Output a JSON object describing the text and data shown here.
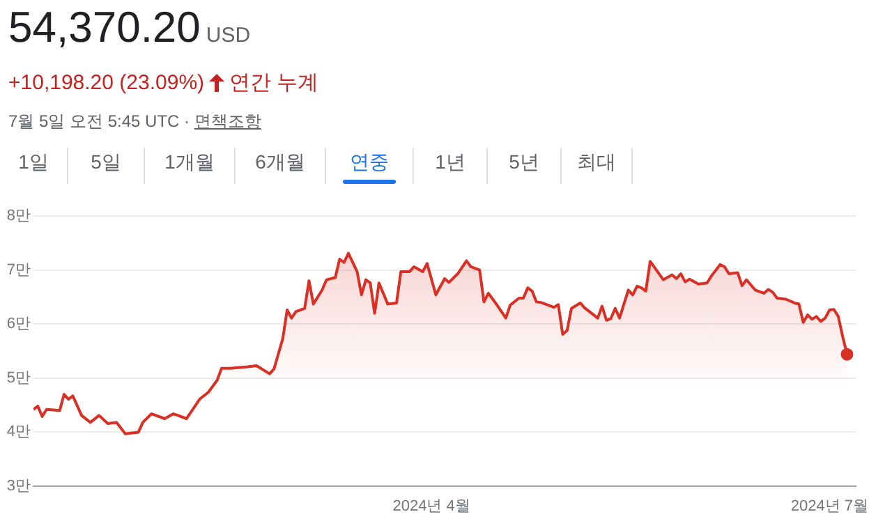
{
  "chart_data": {
    "type": "area",
    "title": "54,370.20",
    "subtitle": "USD",
    "annotations": [
      "+10,198.20 (23.09%)",
      "연간 누계",
      "7월 5일 오전 5:45 UTC · ",
      "면책조항",
      "1일",
      "5일",
      "1개월",
      "6개월",
      "연중",
      "1년",
      "5년",
      "최대"
    ],
    "x": [
      "2024-01-01",
      "2024-01-02",
      "2024-01-03",
      "2024-01-04",
      "2024-01-07",
      "2024-01-08",
      "2024-01-09",
      "2024-01-10",
      "2024-01-12",
      "2024-01-14",
      "2024-01-16",
      "2024-01-18",
      "2024-01-20",
      "2024-01-22",
      "2024-01-25",
      "2024-01-26",
      "2024-01-28",
      "2024-01-31",
      "2024-02-02",
      "2024-02-05",
      "2024-02-08",
      "2024-02-10",
      "2024-02-12",
      "2024-02-13",
      "2024-02-15",
      "2024-02-19",
      "2024-02-21",
      "2024-02-24",
      "2024-02-25",
      "2024-02-27",
      "2024-02-28",
      "2024-02-29",
      "2024-03-01",
      "2024-03-03",
      "2024-03-04",
      "2024-03-05",
      "2024-03-07",
      "2024-03-08",
      "2024-03-10",
      "2024-03-11",
      "2024-03-12",
      "2024-03-13",
      "2024-03-15",
      "2024-03-16",
      "2024-03-17",
      "2024-03-18",
      "2024-03-19",
      "2024-03-20",
      "2024-03-22",
      "2024-03-24",
      "2024-03-25",
      "2024-03-27",
      "2024-03-28",
      "2024-03-30",
      "2024-03-31",
      "2024-04-02",
      "2024-04-04",
      "2024-04-05",
      "2024-04-07",
      "2024-04-09",
      "2024-04-10",
      "2024-04-12",
      "2024-04-13",
      "2024-04-14",
      "2024-04-16",
      "2024-04-18",
      "2024-04-19",
      "2024-04-21",
      "2024-04-22",
      "2024-04-23",
      "2024-04-24",
      "2024-04-25",
      "2024-04-26",
      "2024-04-29",
      "2024-04-30",
      "2024-05-01",
      "2024-05-02",
      "2024-05-03",
      "2024-05-05",
      "2024-05-06",
      "2024-05-09",
      "2024-05-10",
      "2024-05-11",
      "2024-05-12",
      "2024-05-13",
      "2024-05-14",
      "2024-05-16",
      "2024-05-17",
      "2024-05-18",
      "2024-05-19",
      "2024-05-20",
      "2024-05-21",
      "2024-05-24",
      "2024-05-26",
      "2024-05-27",
      "2024-05-28",
      "2024-05-29",
      "2024-05-30",
      "2024-06-01",
      "2024-06-03",
      "2024-06-04",
      "2024-06-06",
      "2024-06-07",
      "2024-06-08",
      "2024-06-10",
      "2024-06-11",
      "2024-06-12",
      "2024-06-14",
      "2024-06-16",
      "2024-06-17",
      "2024-06-18",
      "2024-06-19",
      "2024-06-21",
      "2024-06-23",
      "2024-06-24",
      "2024-06-25",
      "2024-06-26",
      "2024-06-27",
      "2024-06-28",
      "2024-06-29",
      "2024-06-30",
      "2024-07-01",
      "2024-07-02",
      "2024-07-03",
      "2024-07-04",
      "2024-07-05"
    ],
    "values": [
      4.42,
      4.48,
      4.29,
      4.42,
      4.4,
      4.7,
      4.61,
      4.67,
      4.31,
      4.18,
      4.31,
      4.16,
      4.18,
      3.97,
      4.0,
      4.18,
      4.34,
      4.25,
      4.34,
      4.25,
      4.61,
      4.74,
      4.96,
      5.18,
      5.18,
      5.21,
      5.23,
      5.08,
      5.17,
      5.73,
      6.26,
      6.11,
      6.23,
      6.29,
      6.8,
      6.37,
      6.63,
      6.82,
      6.86,
      7.2,
      7.14,
      7.31,
      6.97,
      6.54,
      6.82,
      6.76,
      6.2,
      6.76,
      6.37,
      6.39,
      6.97,
      6.97,
      7.06,
      6.97,
      7.12,
      6.54,
      6.84,
      6.77,
      6.93,
      7.17,
      7.06,
      7.0,
      6.41,
      6.57,
      6.35,
      6.11,
      6.35,
      6.48,
      6.48,
      6.67,
      6.61,
      6.41,
      6.4,
      6.31,
      6.36,
      5.81,
      5.88,
      6.29,
      6.39,
      6.3,
      6.11,
      6.33,
      6.07,
      6.1,
      6.29,
      6.11,
      6.63,
      6.54,
      6.7,
      6.67,
      6.61,
      7.16,
      6.82,
      6.91,
      6.84,
      6.93,
      6.78,
      6.83,
      6.74,
      6.76,
      6.89,
      7.1,
      7.06,
      6.93,
      6.95,
      6.71,
      6.82,
      6.63,
      6.57,
      6.64,
      6.59,
      6.48,
      6.46,
      6.39,
      6.37,
      6.03,
      6.17,
      6.09,
      6.14,
      6.05,
      6.11,
      6.26,
      6.27,
      6.14,
      5.77,
      5.44
    ],
    "color": "#d93025",
    "xlim": [
      "2024-01-01",
      "2024-07-07"
    ],
    "xticks": [
      {
        "value": "2024-04-01",
        "label": "2024년 4월"
      },
      {
        "value": "2024-07-01",
        "label": "2024년 7월"
      }
    ],
    "ylim": [
      3,
      8
    ],
    "yticks": [
      {
        "value": 3,
        "label": "3만"
      },
      {
        "value": 4,
        "label": "4만"
      },
      {
        "value": 5,
        "label": "5만"
      },
      {
        "value": 6,
        "label": "6만"
      },
      {
        "value": 7,
        "label": "7만"
      },
      {
        "value": 8,
        "label": "8만"
      }
    ],
    "grid": "y",
    "legend": false,
    "marker": "none",
    "line_style": "solid"
  }
}
